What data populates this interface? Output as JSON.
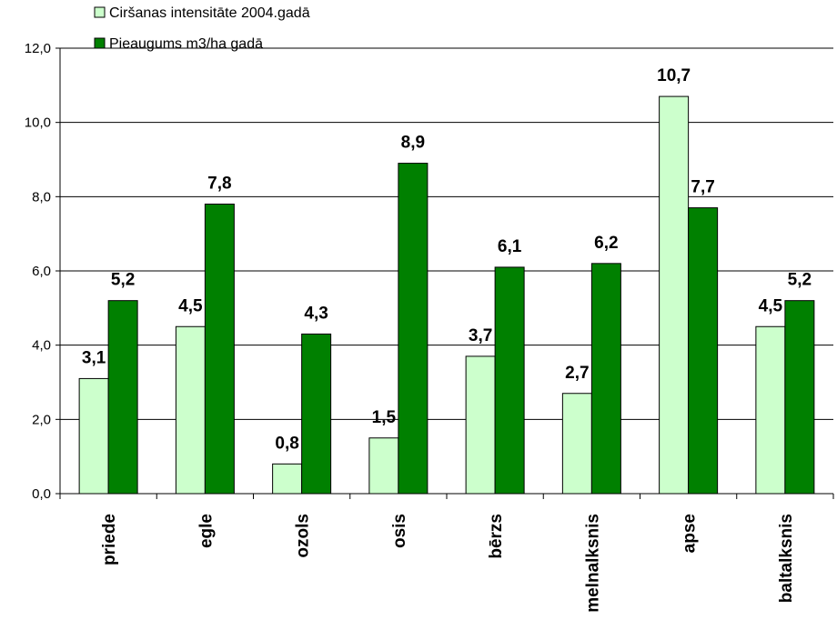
{
  "chart_data": {
    "type": "bar",
    "categories": [
      "priede",
      "egle",
      "ozols",
      "osis",
      "bērzs",
      "melnalksnis",
      "apse",
      "baltalksnis"
    ],
    "series": [
      {
        "name": "Ciršanas intensitāte 2004.gadā",
        "values": [
          3.1,
          4.5,
          0.8,
          1.5,
          3.7,
          2.7,
          10.7,
          4.5
        ],
        "labels": [
          "3,1",
          "4,5",
          "0,8",
          "1,5",
          "3,7",
          "2,7",
          "10,7",
          "4,5"
        ],
        "color": "#ccffcc"
      },
      {
        "name": "Pieaugums m3/ha gadā",
        "values": [
          5.2,
          7.8,
          4.3,
          8.9,
          6.1,
          6.2,
          7.7,
          5.2
        ],
        "labels": [
          "5,2",
          "7,8",
          "4,3",
          "8,9",
          "6,1",
          "6,2",
          "7,7",
          "5,2"
        ],
        "color": "#008000"
      }
    ],
    "ylim": [
      0,
      12
    ],
    "yticks": [
      "0,0",
      "2,0",
      "4,0",
      "6,0",
      "8,0",
      "10,0",
      "12,0"
    ],
    "grid": true,
    "legend_position": "top-left",
    "title": "",
    "xlabel": "",
    "ylabel": ""
  }
}
